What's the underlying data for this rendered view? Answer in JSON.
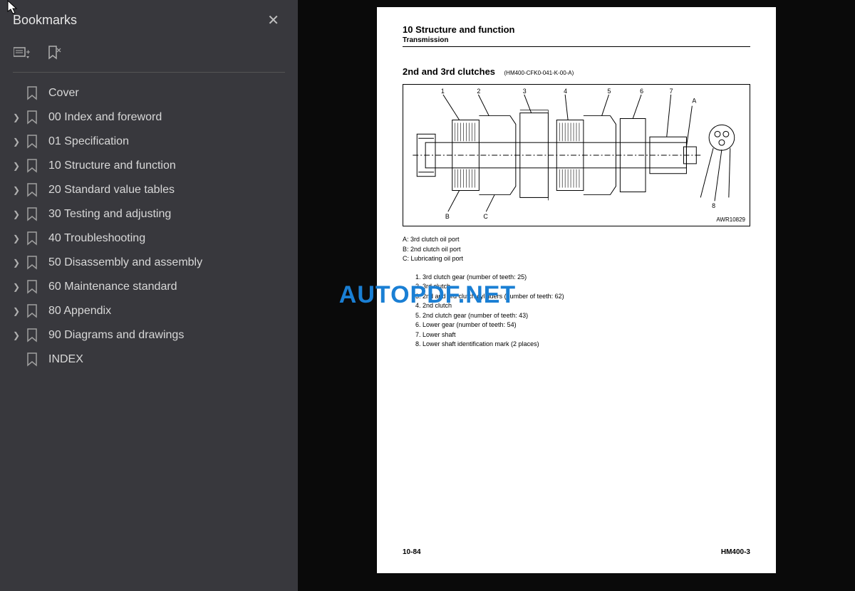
{
  "sidebar": {
    "title": "Bookmarks",
    "items": [
      {
        "label": "Cover",
        "expandable": false
      },
      {
        "label": "00 Index and foreword",
        "expandable": true
      },
      {
        "label": "01 Specification",
        "expandable": true
      },
      {
        "label": "10 Structure and function",
        "expandable": true
      },
      {
        "label": "20 Standard value tables",
        "expandable": true
      },
      {
        "label": "30 Testing and adjusting",
        "expandable": true
      },
      {
        "label": "40 Troubleshooting",
        "expandable": true
      },
      {
        "label": "50 Disassembly and assembly",
        "expandable": true
      },
      {
        "label": "60 Maintenance standard",
        "expandable": true
      },
      {
        "label": "80 Appendix",
        "expandable": true
      },
      {
        "label": "90 Diagrams and drawings",
        "expandable": true
      },
      {
        "label": "INDEX",
        "expandable": false
      }
    ]
  },
  "page": {
    "section_number": "10 Structure and function",
    "subsection": "Transmission",
    "title": "2nd and 3rd clutches",
    "title_code": "(HM400-CFK0-041-K-00-A)",
    "diagram_code": "AWR10829",
    "diagram_labels": [
      "1",
      "2",
      "3",
      "4",
      "5",
      "6",
      "7",
      "A",
      "B",
      "C",
      "8"
    ],
    "ports": [
      "A: 3rd clutch oil port",
      "B: 2nd clutch oil port",
      "C: Lubricating oil port"
    ],
    "items": [
      "3rd clutch gear (number of teeth: 25)",
      "3rd clutch",
      "2nd and 3rd clutch cylinders (number of teeth: 62)",
      "2nd clutch",
      "2nd clutch gear (number of teeth: 43)",
      "Lower gear (number of teeth: 54)",
      "Lower shaft",
      "Lower shaft identification mark (2 places)"
    ],
    "page_number": "10-84",
    "model": "HM400-3"
  },
  "watermark": "AUTOPDF.NET",
  "colors": {
    "sidebar_bg": "#38383d",
    "sidebar_text": "#d8d8d8",
    "page_bg": "#ffffff",
    "content_bg": "#0a0a0a",
    "watermark_color": "#1a7fd4"
  }
}
